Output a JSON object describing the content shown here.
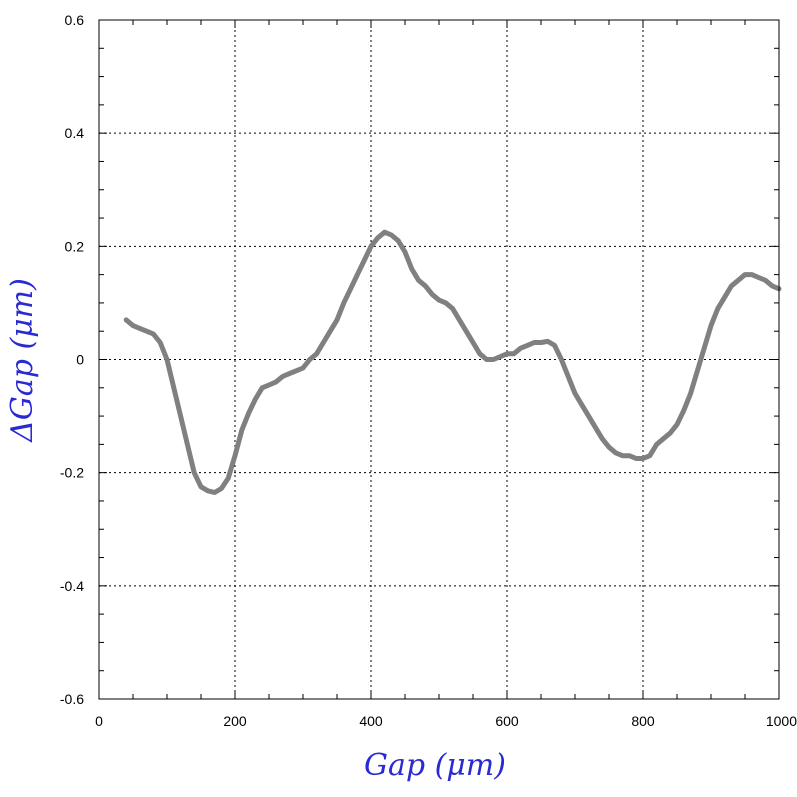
{
  "chart_data": {
    "type": "line",
    "title": "",
    "xlabel": "Gap  (μm)",
    "ylabel": "ΔGap  (μm)",
    "label_color": "#2a2ad4",
    "xlim": [
      0,
      1000
    ],
    "ylim": [
      -0.6,
      0.6
    ],
    "x_ticks": [
      0,
      200,
      400,
      600,
      800,
      1000
    ],
    "x_tick_labels": [
      "0",
      "200",
      "400",
      "600",
      "800",
      "1000"
    ],
    "y_ticks": [
      -0.6,
      -0.4,
      -0.2,
      0,
      0.2,
      0.4,
      0.6
    ],
    "y_tick_labels": [
      "-0.6",
      "-0.4",
      "-0.2",
      "0",
      "0.2",
      "0.4",
      "0.6"
    ],
    "grid": true,
    "legend": "none",
    "series": [
      {
        "color": "#0000ff",
        "x": [
          40,
          50,
          60,
          70,
          80,
          90,
          100,
          110,
          120,
          130,
          140,
          150,
          160,
          170,
          180,
          190,
          200,
          210,
          220,
          230,
          240,
          250,
          260,
          270,
          280,
          290,
          300,
          310,
          320,
          330,
          340,
          350,
          360,
          370,
          380,
          390,
          400,
          410,
          420,
          430,
          440,
          450,
          460,
          470,
          480,
          490,
          500,
          510,
          520,
          530,
          540,
          550,
          560,
          570,
          580,
          590,
          600,
          610,
          620,
          630,
          640,
          650,
          660,
          670,
          680,
          690,
          700,
          710,
          720,
          730,
          740,
          750,
          760,
          770,
          780,
          790,
          800,
          810,
          820,
          830,
          840,
          850,
          860,
          870,
          880,
          890,
          900,
          910,
          920,
          930,
          940,
          950,
          960,
          970,
          980,
          990,
          1000
        ],
        "y": [
          0.07,
          0.06,
          0.055,
          0.05,
          0.045,
          0.03,
          0.0,
          -0.05,
          -0.1,
          -0.15,
          -0.2,
          -0.225,
          -0.232,
          -0.235,
          -0.228,
          -0.21,
          -0.17,
          -0.125,
          -0.095,
          -0.07,
          -0.05,
          -0.045,
          -0.04,
          -0.03,
          -0.025,
          -0.02,
          -0.015,
          0.0,
          0.01,
          0.03,
          0.05,
          0.07,
          0.1,
          0.125,
          0.15,
          0.175,
          0.2,
          0.215,
          0.225,
          0.22,
          0.21,
          0.19,
          0.16,
          0.14,
          0.13,
          0.115,
          0.105,
          0.1,
          0.09,
          0.07,
          0.05,
          0.03,
          0.01,
          0.0,
          0.0,
          0.005,
          0.01,
          0.01,
          0.02,
          0.025,
          0.03,
          0.03,
          0.032,
          0.025,
          0.0,
          -0.03,
          -0.06,
          -0.08,
          -0.1,
          -0.12,
          -0.14,
          -0.155,
          -0.165,
          -0.17,
          -0.17,
          -0.175,
          -0.175,
          -0.17,
          -0.15,
          -0.14,
          -0.13,
          -0.115,
          -0.09,
          -0.06,
          -0.02,
          0.02,
          0.06,
          0.09,
          0.11,
          0.13,
          0.14,
          0.15,
          0.15,
          0.145,
          0.14,
          0.13,
          0.125
        ]
      },
      {
        "color": "#ff0000",
        "x": [
          40,
          50,
          60,
          70,
          80,
          90,
          100,
          110,
          120,
          130,
          140,
          150,
          160,
          170,
          180,
          190,
          200,
          210,
          220,
          230,
          240,
          250,
          260,
          270,
          280,
          290,
          300,
          310,
          320,
          330,
          340,
          350,
          360,
          370,
          380,
          390,
          400,
          410,
          420,
          430,
          440,
          450,
          460,
          470,
          480,
          490,
          500,
          510,
          520,
          530,
          540,
          550,
          560,
          570,
          580,
          590,
          600,
          610,
          620,
          630,
          640,
          650,
          660,
          670,
          680,
          690,
          700,
          710,
          720,
          730,
          740,
          750,
          760,
          770,
          780,
          790,
          800,
          810,
          820,
          830,
          840,
          850,
          860,
          870,
          880,
          890,
          900,
          910,
          920,
          930,
          940,
          950,
          960,
          970,
          980,
          990,
          1000
        ],
        "y": [
          0.068,
          0.058,
          0.054,
          0.048,
          0.043,
          0.028,
          -0.002,
          -0.052,
          -0.102,
          -0.152,
          -0.202,
          -0.227,
          -0.234,
          -0.236,
          -0.23,
          -0.212,
          -0.172,
          -0.127,
          -0.097,
          -0.072,
          -0.052,
          -0.047,
          -0.042,
          -0.032,
          -0.027,
          -0.022,
          -0.017,
          -0.002,
          0.008,
          0.028,
          0.048,
          0.068,
          0.098,
          0.123,
          0.148,
          0.173,
          0.198,
          0.213,
          0.223,
          0.218,
          0.208,
          0.188,
          0.158,
          0.138,
          0.128,
          0.113,
          0.103,
          0.098,
          0.088,
          0.068,
          0.048,
          0.028,
          0.008,
          -0.002,
          -0.002,
          0.003,
          0.008,
          0.008,
          0.018,
          0.023,
          0.028,
          0.028,
          0.03,
          0.023,
          -0.002,
          -0.032,
          -0.062,
          -0.082,
          -0.102,
          -0.122,
          -0.142,
          -0.157,
          -0.167,
          -0.172,
          -0.172,
          -0.177,
          -0.177,
          -0.172,
          -0.152,
          -0.142,
          -0.132,
          -0.117,
          -0.092,
          -0.062,
          -0.022,
          0.018,
          0.058,
          0.088,
          0.108,
          0.128,
          0.138,
          0.148,
          0.148,
          0.143,
          0.138,
          0.128,
          0.123
        ]
      },
      {
        "color": "#00dd00",
        "x": [
          40,
          50,
          60,
          70,
          80,
          90,
          100,
          110,
          120,
          130,
          140,
          150,
          160,
          170,
          180,
          190,
          200,
          210,
          220,
          230,
          240,
          250,
          260,
          270,
          280,
          290,
          300,
          310,
          320,
          330,
          340,
          350,
          360,
          370,
          380,
          390,
          400,
          410,
          420,
          430,
          440,
          450,
          460,
          470,
          480,
          490,
          500,
          510,
          520,
          530,
          540,
          550,
          560,
          570,
          580,
          590,
          600,
          610,
          620,
          630,
          640,
          650,
          660,
          670,
          680,
          690,
          700,
          710,
          720,
          730,
          740,
          750,
          760,
          770,
          780,
          790,
          800,
          810,
          820,
          830,
          840,
          850,
          860,
          870,
          880,
          890,
          900,
          910,
          920,
          930,
          940,
          950,
          960,
          970,
          980,
          990,
          1000
        ],
        "y": [
          0.072,
          0.062,
          0.056,
          0.052,
          0.047,
          0.032,
          0.002,
          -0.048,
          -0.098,
          -0.148,
          -0.198,
          -0.223,
          -0.23,
          -0.233,
          -0.226,
          -0.208,
          -0.168,
          -0.123,
          -0.093,
          -0.068,
          -0.048,
          -0.043,
          -0.038,
          -0.028,
          -0.023,
          -0.018,
          -0.013,
          0.002,
          0.012,
          0.032,
          0.052,
          0.072,
          0.102,
          0.127,
          0.152,
          0.177,
          0.202,
          0.217,
          0.227,
          0.222,
          0.212,
          0.192,
          0.162,
          0.142,
          0.132,
          0.117,
          0.107,
          0.102,
          0.092,
          0.072,
          0.052,
          0.032,
          0.012,
          0.002,
          0.002,
          0.007,
          0.012,
          0.012,
          0.022,
          0.027,
          0.032,
          0.032,
          0.034,
          0.027,
          0.002,
          -0.028,
          -0.058,
          -0.078,
          -0.098,
          -0.118,
          -0.138,
          -0.153,
          -0.163,
          -0.168,
          -0.168,
          -0.173,
          -0.173,
          -0.168,
          -0.148,
          -0.138,
          -0.128,
          -0.113,
          -0.088,
          -0.058,
          -0.018,
          0.022,
          0.062,
          0.092,
          0.112,
          0.132,
          0.142,
          0.152,
          0.152,
          0.147,
          0.142,
          0.132,
          0.127
        ]
      },
      {
        "color": "#808080",
        "x": [
          40,
          50,
          60,
          70,
          80,
          90,
          100,
          110,
          120,
          130,
          140,
          150,
          160,
          170,
          180,
          190,
          200,
          210,
          220,
          230,
          240,
          250,
          260,
          270,
          280,
          290,
          300,
          310,
          320,
          330,
          340,
          350,
          360,
          370,
          380,
          390,
          400,
          410,
          420,
          430,
          440,
          450,
          460,
          470,
          480,
          490,
          500,
          510,
          520,
          530,
          540,
          550,
          560,
          570,
          580,
          590,
          600,
          610,
          620,
          630,
          640,
          650,
          660,
          670,
          680,
          690,
          700,
          710,
          720,
          730,
          740,
          750,
          760,
          770,
          780,
          790,
          800,
          810,
          820,
          830,
          840,
          850,
          860,
          870,
          880,
          890,
          900,
          910,
          920,
          930,
          940,
          950,
          960,
          970,
          980,
          990,
          1000
        ],
        "y": [
          0.07,
          0.06,
          0.055,
          0.05,
          0.045,
          0.03,
          0.0,
          -0.05,
          -0.1,
          -0.15,
          -0.2,
          -0.225,
          -0.232,
          -0.235,
          -0.228,
          -0.21,
          -0.17,
          -0.125,
          -0.095,
          -0.07,
          -0.05,
          -0.045,
          -0.04,
          -0.03,
          -0.025,
          -0.02,
          -0.015,
          0.0,
          0.01,
          0.03,
          0.05,
          0.07,
          0.1,
          0.125,
          0.15,
          0.175,
          0.2,
          0.215,
          0.225,
          0.22,
          0.21,
          0.19,
          0.16,
          0.14,
          0.13,
          0.115,
          0.105,
          0.1,
          0.09,
          0.07,
          0.05,
          0.03,
          0.01,
          0.0,
          0.0,
          0.005,
          0.01,
          0.01,
          0.02,
          0.025,
          0.03,
          0.03,
          0.032,
          0.025,
          0.0,
          -0.03,
          -0.06,
          -0.08,
          -0.1,
          -0.12,
          -0.14,
          -0.155,
          -0.165,
          -0.17,
          -0.17,
          -0.175,
          -0.175,
          -0.17,
          -0.15,
          -0.14,
          -0.13,
          -0.115,
          -0.09,
          -0.06,
          -0.02,
          0.02,
          0.06,
          0.09,
          0.11,
          0.13,
          0.14,
          0.15,
          0.15,
          0.145,
          0.14,
          0.13,
          0.125
        ]
      }
    ]
  }
}
